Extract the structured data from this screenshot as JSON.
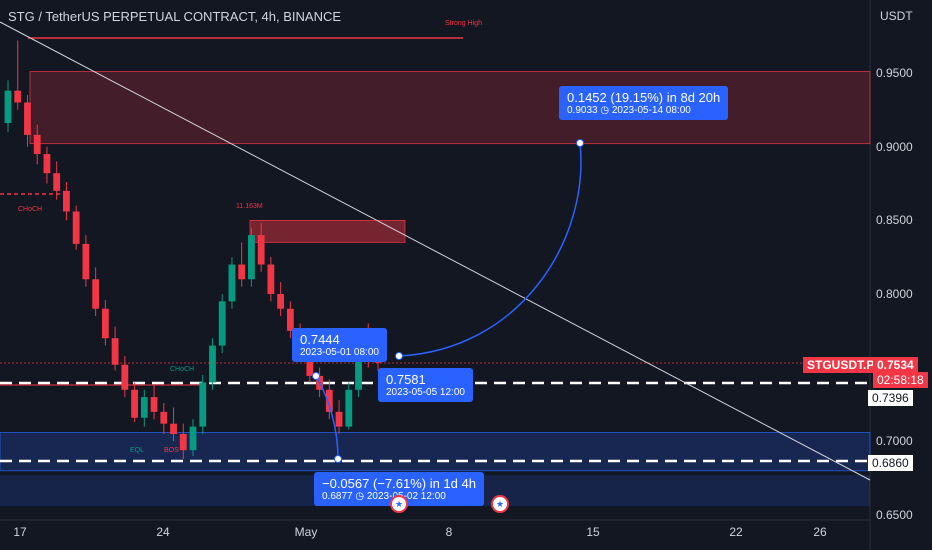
{
  "chart_data": {
    "type": "candlestick",
    "title": "STG / TetherUS PERPETUAL CONTRACT, 4h, BINANCE",
    "ylabel": "USDT",
    "ylim": [
      0.65,
      0.99
    ],
    "yticks": [
      "0.6500",
      "0.7000",
      "0.7500",
      "0.8000",
      "0.8500",
      "0.9000",
      "0.9500"
    ],
    "xticks": [
      "17",
      "24",
      "May",
      "8",
      "15",
      "22",
      "26"
    ],
    "symbol_tag": "STGUSDT.P",
    "last_price": "0.7534",
    "countdown": "02:58:18",
    "levels": [
      "0.7396",
      "0.6860"
    ],
    "measure_up": {
      "change": "0.1452 (19.15%) in 8d 20h",
      "target": "0.9033 ◷ 2023-05-14  08:00"
    },
    "point_a": {
      "price": "0.7444",
      "date": "2023-05-01 08:00"
    },
    "point_b": {
      "price": "0.7581",
      "date": "2023-05-05 12:00"
    },
    "measure_down": {
      "change": "−0.0567 (−7.61%) in 1d 4h",
      "target": "0.6877 ◷ 2023-05-02  12:00"
    },
    "annotations": {
      "strong_high": "Strong High",
      "choch_1": "CHoCH",
      "volume": "11.163M",
      "choch_2": "CHoCH",
      "eql": "EQL",
      "bos": "BOS"
    },
    "colors": {
      "up": "#089981",
      "down": "#f23645",
      "accent": "#2962ff",
      "background": "#131722"
    },
    "series": [
      {
        "values": [
          [
            0.916,
            0.945,
            0.91,
            0.938
          ],
          [
            0.938,
            0.972,
            0.925,
            0.93
          ],
          [
            0.93,
            0.935,
            0.9,
            0.908
          ],
          [
            0.908,
            0.915,
            0.888,
            0.895
          ],
          [
            0.895,
            0.9,
            0.875,
            0.882
          ],
          [
            0.882,
            0.89,
            0.864,
            0.87
          ],
          [
            0.87,
            0.876,
            0.85,
            0.856
          ],
          [
            0.856,
            0.86,
            0.83,
            0.834
          ],
          [
            0.834,
            0.84,
            0.805,
            0.81
          ],
          [
            0.81,
            0.818,
            0.785,
            0.79
          ],
          [
            0.79,
            0.796,
            0.765,
            0.77
          ],
          [
            0.77,
            0.778,
            0.748,
            0.752
          ],
          [
            0.752,
            0.758,
            0.73,
            0.735
          ],
          [
            0.735,
            0.74,
            0.713,
            0.716
          ],
          [
            0.716,
            0.735,
            0.71,
            0.73
          ],
          [
            0.73,
            0.738,
            0.715,
            0.72
          ],
          [
            0.72,
            0.726,
            0.705,
            0.712
          ],
          [
            0.712,
            0.723,
            0.7,
            0.705
          ],
          [
            0.705,
            0.712,
            0.688,
            0.694
          ],
          [
            0.694,
            0.715,
            0.69,
            0.71
          ],
          [
            0.71,
            0.745,
            0.705,
            0.74
          ],
          [
            0.74,
            0.77,
            0.735,
            0.765
          ],
          [
            0.765,
            0.8,
            0.76,
            0.795
          ],
          [
            0.795,
            0.825,
            0.79,
            0.82
          ],
          [
            0.82,
            0.835,
            0.805,
            0.81
          ],
          [
            0.81,
            0.845,
            0.805,
            0.84
          ],
          [
            0.84,
            0.848,
            0.815,
            0.82
          ],
          [
            0.82,
            0.825,
            0.795,
            0.8
          ],
          [
            0.8,
            0.808,
            0.785,
            0.79
          ],
          [
            0.79,
            0.795,
            0.77,
            0.775
          ],
          [
            0.775,
            0.78,
            0.758,
            0.76
          ],
          [
            0.76,
            0.764,
            0.74,
            0.7444
          ],
          [
            0.7444,
            0.75,
            0.73,
            0.735
          ],
          [
            0.735,
            0.742,
            0.715,
            0.72
          ],
          [
            0.72,
            0.728,
            0.705,
            0.71
          ],
          [
            0.71,
            0.74,
            0.708,
            0.735
          ],
          [
            0.735,
            0.77,
            0.73,
            0.765
          ],
          [
            0.765,
            0.78,
            0.75,
            0.7581
          ],
          [
            0.7581,
            0.762,
            0.748,
            0.7534
          ]
        ]
      }
    ]
  }
}
